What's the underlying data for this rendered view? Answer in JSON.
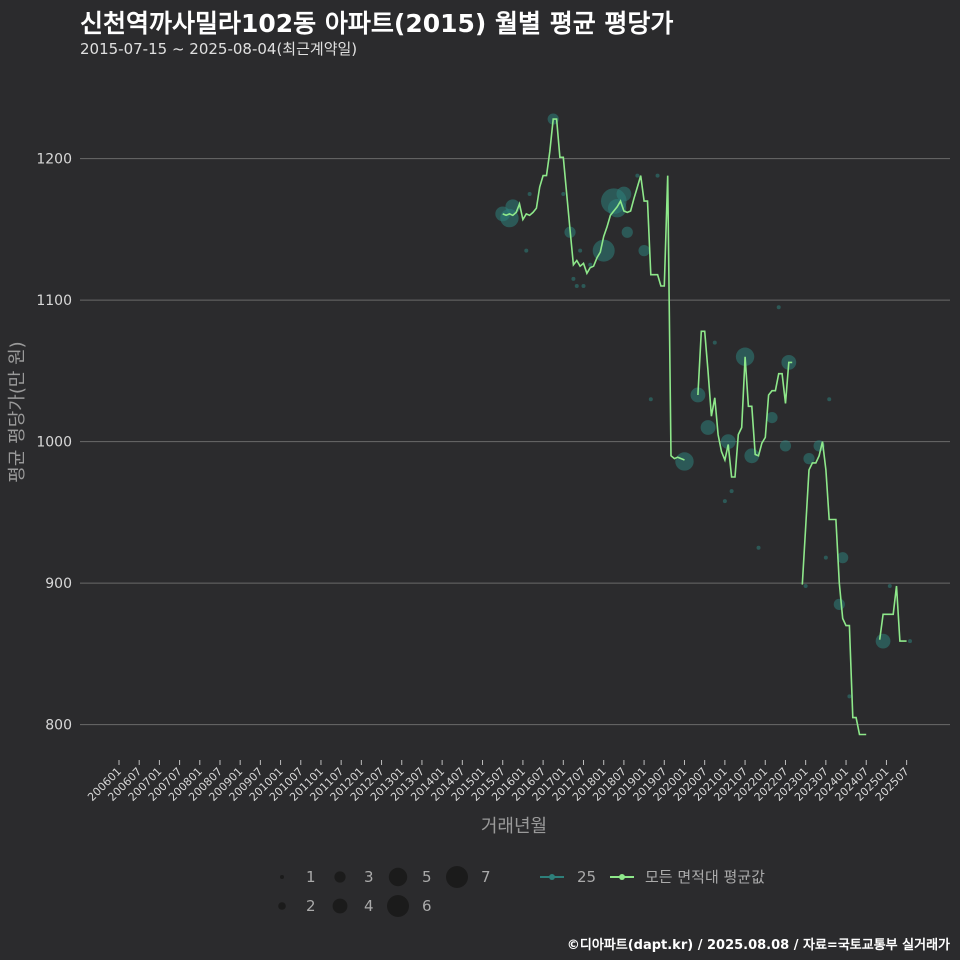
{
  "header": {
    "title": "신천역까사밀라102동 아파트(2015) 월별 평균 평당가",
    "subtitle": "2015-07-15 ~ 2025-08-04(최근계약일)"
  },
  "caption": "©디아파트(dapt.kr) / 2025.08.08 / 자료=국토교통부 실거래가",
  "colors": {
    "background": "#2b2b2d",
    "grid": "#6a6a6a",
    "line": "#8ee88a",
    "point": "#2e7f7a"
  },
  "chart_data": {
    "type": "line",
    "title": "신천역까사밀라102동 아파트(2015) 월별 평균 평당가",
    "xlabel": "거래년월",
    "ylabel": "평균 평당가(만 원)",
    "ylim": [
      775,
      1245
    ],
    "y_ticks": [
      800,
      900,
      1000,
      1100,
      1200
    ],
    "x_range": [
      "2006-01",
      "2025-08"
    ],
    "x_tick_labels": [
      "200601",
      "200607",
      "200701",
      "200707",
      "200801",
      "200807",
      "200901",
      "200907",
      "201001",
      "201007",
      "201101",
      "201107",
      "201201",
      "201207",
      "201301",
      "201307",
      "201401",
      "201407",
      "201501",
      "201507",
      "201601",
      "201607",
      "201701",
      "201707",
      "201801",
      "201807",
      "201901",
      "201907",
      "202001",
      "202007",
      "202101",
      "202107",
      "202201",
      "202207",
      "202301",
      "202307",
      "202401",
      "202407",
      "202501",
      "202507"
    ],
    "grid": "horizontal",
    "series": [
      {
        "name": "모든 면적대 평균값",
        "type": "line",
        "segments": [
          [
            [
              "2015-07",
              1161
            ],
            [
              "2015-08",
              1160
            ],
            [
              "2015-09",
              1161
            ],
            [
              "2015-10",
              1160
            ],
            [
              "2015-11",
              1162
            ],
            [
              "2015-12",
              1168
            ],
            [
              "2016-01",
              1157
            ],
            [
              "2016-02",
              1161
            ],
            [
              "2016-03",
              1160
            ],
            [
              "2016-04",
              1162
            ],
            [
              "2016-05",
              1165
            ],
            [
              "2016-06",
              1180
            ],
            [
              "2016-07",
              1188
            ],
            [
              "2016-08",
              1188
            ],
            [
              "2016-09",
              1205
            ],
            [
              "2016-10",
              1228
            ],
            [
              "2016-11",
              1228
            ],
            [
              "2016-12",
              1201
            ],
            [
              "2017-01",
              1201
            ],
            [
              "2017-02",
              1175
            ],
            [
              "2017-03",
              1150
            ],
            [
              "2017-04",
              1125
            ],
            [
              "2017-05",
              1128
            ],
            [
              "2017-06",
              1124
            ],
            [
              "2017-07",
              1126
            ],
            [
              "2017-08",
              1119
            ],
            [
              "2017-09",
              1123
            ],
            [
              "2017-10",
              1124
            ],
            [
              "2017-11",
              1130
            ],
            [
              "2017-12",
              1134
            ],
            [
              "2018-01",
              1145
            ],
            [
              "2018-02",
              1152
            ],
            [
              "2018-03",
              1160
            ],
            [
              "2018-04",
              1163
            ],
            [
              "2018-05",
              1166
            ],
            [
              "2018-06",
              1170
            ],
            [
              "2018-07",
              1163
            ],
            [
              "2018-08",
              1162
            ],
            [
              "2018-09",
              1163
            ],
            [
              "2018-10",
              1172
            ],
            [
              "2018-11",
              1180
            ],
            [
              "2018-12",
              1188
            ],
            [
              "2019-01",
              1170
            ],
            [
              "2019-02",
              1170
            ],
            [
              "2019-03",
              1118
            ],
            [
              "2019-04",
              1118
            ],
            [
              "2019-05",
              1118
            ],
            [
              "2019-06",
              1110
            ],
            [
              "2019-07",
              1110
            ],
            [
              "2019-08",
              1188
            ],
            [
              "2019-09",
              990
            ],
            [
              "2019-10",
              988
            ],
            [
              "2019-11",
              989
            ],
            [
              "2019-12",
              988
            ],
            [
              "2020-01",
              987
            ]
          ],
          [
            [
              "2020-05",
              1033
            ],
            [
              "2020-06",
              1078
            ],
            [
              "2020-07",
              1078
            ],
            [
              "2020-08",
              1050
            ],
            [
              "2020-09",
              1018
            ],
            [
              "2020-10",
              1031
            ],
            [
              "2020-11",
              1005
            ],
            [
              "2020-12",
              993
            ],
            [
              "2021-01",
              987
            ],
            [
              "2021-02",
              998
            ],
            [
              "2021-03",
              975
            ],
            [
              "2021-04",
              975
            ],
            [
              "2021-05",
              1005
            ],
            [
              "2021-06",
              1010
            ],
            [
              "2021-07",
              1060
            ],
            [
              "2021-08",
              1025
            ],
            [
              "2021-09",
              1025
            ],
            [
              "2021-10",
              991
            ],
            [
              "2021-11",
              990
            ],
            [
              "2021-12",
              999
            ],
            [
              "2022-01",
              1003
            ],
            [
              "2022-02",
              1033
            ],
            [
              "2022-03",
              1036
            ],
            [
              "2022-04",
              1036
            ],
            [
              "2022-05",
              1048
            ],
            [
              "2022-06",
              1048
            ],
            [
              "2022-07",
              1027
            ],
            [
              "2022-08",
              1056
            ],
            [
              "2022-09",
              1056
            ]
          ],
          [
            [
              "2022-12",
              899
            ],
            [
              "2023-01",
              940
            ],
            [
              "2023-02",
              980
            ],
            [
              "2023-03",
              985
            ],
            [
              "2023-04",
              985
            ],
            [
              "2023-05",
              990
            ],
            [
              "2023-06",
              1000
            ],
            [
              "2023-07",
              980
            ],
            [
              "2023-08",
              945
            ],
            [
              "2023-09",
              945
            ],
            [
              "2023-10",
              945
            ],
            [
              "2023-11",
              900
            ],
            [
              "2023-12",
              875
            ],
            [
              "2024-01",
              870
            ],
            [
              "2024-02",
              870
            ],
            [
              "2024-03",
              805
            ],
            [
              "2024-04",
              805
            ],
            [
              "2024-05",
              793
            ],
            [
              "2024-06",
              793
            ],
            [
              "2024-07",
              793
            ]
          ],
          [
            [
              "2024-11",
              860
            ],
            [
              "2024-12",
              878
            ],
            [
              "2025-01",
              878
            ],
            [
              "2025-02",
              878
            ],
            [
              "2025-03",
              878
            ],
            [
              "2025-04",
              898
            ],
            [
              "2025-05",
              859
            ],
            [
              "2025-06",
              859
            ],
            [
              "2025-07",
              859
            ]
          ]
        ]
      },
      {
        "name": "25",
        "type": "scatter",
        "points": [
          [
            "2015-07",
            1161,
            4
          ],
          [
            "2015-09",
            1158,
            5
          ],
          [
            "2015-10",
            1166,
            4
          ],
          [
            "2016-02",
            1135,
            1
          ],
          [
            "2016-03",
            1175,
            1
          ],
          [
            "2016-10",
            1228,
            3
          ],
          [
            "2017-01",
            1175,
            1
          ],
          [
            "2017-03",
            1148,
            3
          ],
          [
            "2017-04",
            1115,
            1
          ],
          [
            "2017-05",
            1110,
            1
          ],
          [
            "2017-06",
            1135,
            1
          ],
          [
            "2017-07",
            1110,
            1
          ],
          [
            "2017-09",
            1125,
            1
          ],
          [
            "2018-01",
            1135,
            6
          ],
          [
            "2018-04",
            1170,
            7
          ],
          [
            "2018-05",
            1165,
            5
          ],
          [
            "2018-07",
            1175,
            4
          ],
          [
            "2018-08",
            1148,
            3
          ],
          [
            "2018-11",
            1188,
            1
          ],
          [
            "2019-01",
            1135,
            3
          ],
          [
            "2019-03",
            1030,
            1
          ],
          [
            "2019-05",
            1188,
            1
          ],
          [
            "2020-01",
            986,
            5
          ],
          [
            "2020-05",
            1033,
            4
          ],
          [
            "2020-08",
            1010,
            4
          ],
          [
            "2020-10",
            1070,
            1
          ],
          [
            "2021-01",
            958,
            1
          ],
          [
            "2021-02",
            1000,
            4
          ],
          [
            "2021-03",
            965,
            1
          ],
          [
            "2021-07",
            1060,
            5
          ],
          [
            "2021-09",
            990,
            4
          ],
          [
            "2021-11",
            925,
            1
          ],
          [
            "2022-03",
            1017,
            3
          ],
          [
            "2022-05",
            1095,
            1
          ],
          [
            "2022-07",
            997,
            3
          ],
          [
            "2022-08",
            1056,
            4
          ],
          [
            "2023-01",
            898,
            1
          ],
          [
            "2023-02",
            988,
            3
          ],
          [
            "2023-05",
            997,
            3
          ],
          [
            "2023-07",
            918,
            1
          ],
          [
            "2023-08",
            1030,
            1
          ],
          [
            "2023-11",
            885,
            3
          ],
          [
            "2023-12",
            918,
            3
          ],
          [
            "2024-02",
            820,
            1
          ],
          [
            "2024-12",
            859,
            4
          ],
          [
            "2025-02",
            898,
            1
          ],
          [
            "2025-08",
            859,
            1
          ]
        ]
      }
    ],
    "legend": {
      "size_title": "",
      "sizes": [
        1,
        2,
        3,
        4,
        5,
        6,
        7
      ],
      "size_labels": [
        "1",
        "2",
        "3",
        "4",
        "5",
        "6",
        "7"
      ],
      "series_labels": [
        "25",
        "모든 면적대 평균값"
      ],
      "position": "bottom"
    }
  }
}
